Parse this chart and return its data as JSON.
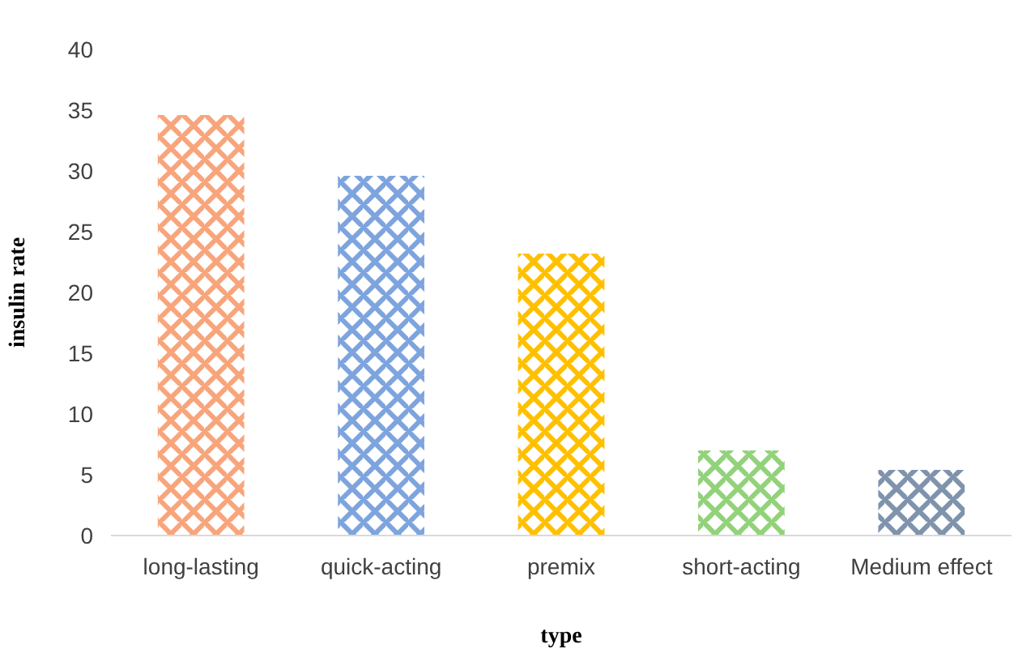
{
  "chart_data": {
    "type": "bar",
    "xlabel": "type",
    "ylabel": "insulin rate",
    "categories": [
      "long-lasting",
      "quick-acting",
      "premix",
      "short-acting",
      "Medium effect"
    ],
    "values": [
      34.6,
      29.6,
      23.2,
      7.0,
      5.4
    ],
    "colors": [
      "#f8a57c",
      "#7ea4de",
      "#ffc000",
      "#92d27a",
      "#7f93ad"
    ],
    "ylim": [
      0,
      40
    ],
    "yticks": [
      0,
      5,
      10,
      15,
      20,
      25,
      30,
      35,
      40
    ],
    "grid": false
  }
}
